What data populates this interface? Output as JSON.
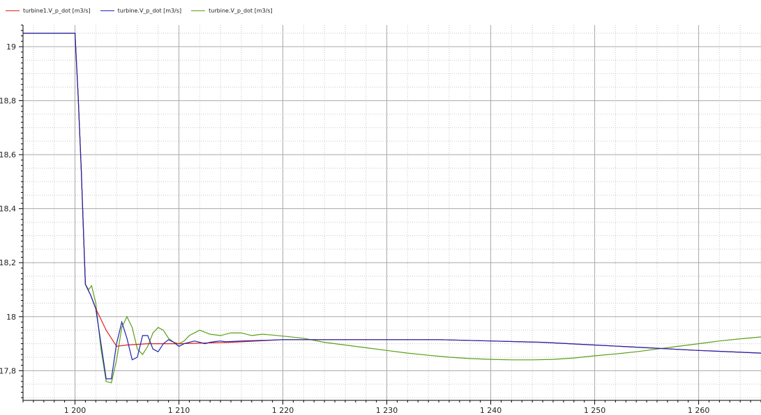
{
  "chart_data": {
    "type": "line",
    "title": "",
    "xlabel": "",
    "ylabel": "",
    "xlim": [
      1195,
      1266
    ],
    "ylim": [
      17.69,
      19.08
    ],
    "x_ticks": [
      {
        "value": 1200,
        "label": "1 200"
      },
      {
        "value": 1210,
        "label": "1 210"
      },
      {
        "value": 1220,
        "label": "1 220"
      },
      {
        "value": 1230,
        "label": "1 230"
      },
      {
        "value": 1240,
        "label": "1 240"
      },
      {
        "value": 1250,
        "label": "1 250"
      },
      {
        "value": 1260,
        "label": "1 260"
      }
    ],
    "y_ticks": [
      {
        "value": 17.8,
        "label": "17,8"
      },
      {
        "value": 18.0,
        "label": "18"
      },
      {
        "value": 18.2,
        "label": "18,2"
      },
      {
        "value": 18.4,
        "label": "18,4"
      },
      {
        "value": 18.6,
        "label": "18,6"
      },
      {
        "value": 18.8,
        "label": "18,8"
      },
      {
        "value": 19.0,
        "label": "19"
      }
    ],
    "grid": true,
    "legend_position": "top-left",
    "series": [
      {
        "name": "turbine1.V_p_dot [m3/s]",
        "color": "#e0201c",
        "x": [
          1195,
          1200,
          1200.3,
          1200.6,
          1201,
          1201.5,
          1202,
          1202.5,
          1203,
          1203.5,
          1204,
          1205,
          1207,
          1210,
          1215,
          1220,
          1225,
          1230,
          1235,
          1240,
          1245,
          1250,
          1255,
          1260,
          1266
        ],
        "y": [
          19.05,
          19.05,
          18.82,
          18.55,
          18.12,
          18.08,
          18.03,
          17.99,
          17.95,
          17.92,
          17.89,
          17.895,
          17.9,
          17.9,
          17.905,
          17.915,
          17.915,
          17.915,
          17.915,
          17.91,
          17.905,
          17.895,
          17.885,
          17.875,
          17.865
        ]
      },
      {
        "name": "turbine.V_p_dot [m3/s]",
        "color": "#1c24b0",
        "x": [
          1195,
          1200,
          1200.3,
          1200.6,
          1201,
          1201.5,
          1202,
          1202.5,
          1203,
          1203.5,
          1204,
          1204.5,
          1205,
          1205.5,
          1206,
          1206.5,
          1207,
          1207.5,
          1208,
          1208.5,
          1209,
          1209.5,
          1210,
          1210.5,
          1211,
          1211.5,
          1212,
          1212.5,
          1213,
          1213.5,
          1214,
          1214.5,
          1215,
          1216,
          1218,
          1220,
          1225,
          1230,
          1235,
          1240,
          1245,
          1250,
          1255,
          1260,
          1266
        ],
        "y": [
          19.05,
          19.05,
          18.82,
          18.55,
          18.12,
          18.08,
          18.03,
          17.9,
          17.77,
          17.77,
          17.9,
          17.98,
          17.92,
          17.84,
          17.85,
          17.93,
          17.93,
          17.88,
          17.87,
          17.9,
          17.915,
          17.905,
          17.89,
          17.9,
          17.905,
          17.91,
          17.905,
          17.9,
          17.905,
          17.908,
          17.91,
          17.907,
          17.908,
          17.91,
          17.912,
          17.915,
          17.915,
          17.915,
          17.915,
          17.91,
          17.905,
          17.895,
          17.885,
          17.875,
          17.865
        ]
      },
      {
        "name": "turbine.V_p_dot [m3/s]",
        "color": "#5a9e16",
        "x": [
          1195,
          1200,
          1200.3,
          1200.6,
          1201,
          1201.3,
          1201.6,
          1202,
          1202.5,
          1203,
          1203.5,
          1204,
          1204.5,
          1205,
          1205.5,
          1206,
          1206.5,
          1207,
          1207.5,
          1208,
          1208.5,
          1209,
          1209.5,
          1210,
          1210.5,
          1211,
          1212,
          1213,
          1214,
          1215,
          1216,
          1217,
          1218,
          1219,
          1220,
          1222,
          1224,
          1226,
          1228,
          1230,
          1232,
          1234,
          1236,
          1238,
          1240,
          1242,
          1244,
          1246,
          1248,
          1250,
          1252,
          1254,
          1256,
          1258,
          1260,
          1262,
          1264,
          1266
        ],
        "y": [
          19.05,
          19.05,
          18.82,
          18.55,
          18.12,
          18.1,
          18.115,
          18.05,
          17.88,
          17.76,
          17.755,
          17.84,
          17.96,
          18.0,
          17.96,
          17.88,
          17.86,
          17.89,
          17.94,
          17.96,
          17.95,
          17.92,
          17.905,
          17.9,
          17.91,
          17.93,
          17.95,
          17.935,
          17.93,
          17.94,
          17.94,
          17.93,
          17.935,
          17.932,
          17.928,
          17.92,
          17.905,
          17.895,
          17.885,
          17.875,
          17.865,
          17.857,
          17.85,
          17.845,
          17.842,
          17.84,
          17.84,
          17.842,
          17.847,
          17.855,
          17.862,
          17.87,
          17.88,
          17.89,
          17.9,
          17.91,
          17.918,
          17.925
        ]
      }
    ]
  }
}
